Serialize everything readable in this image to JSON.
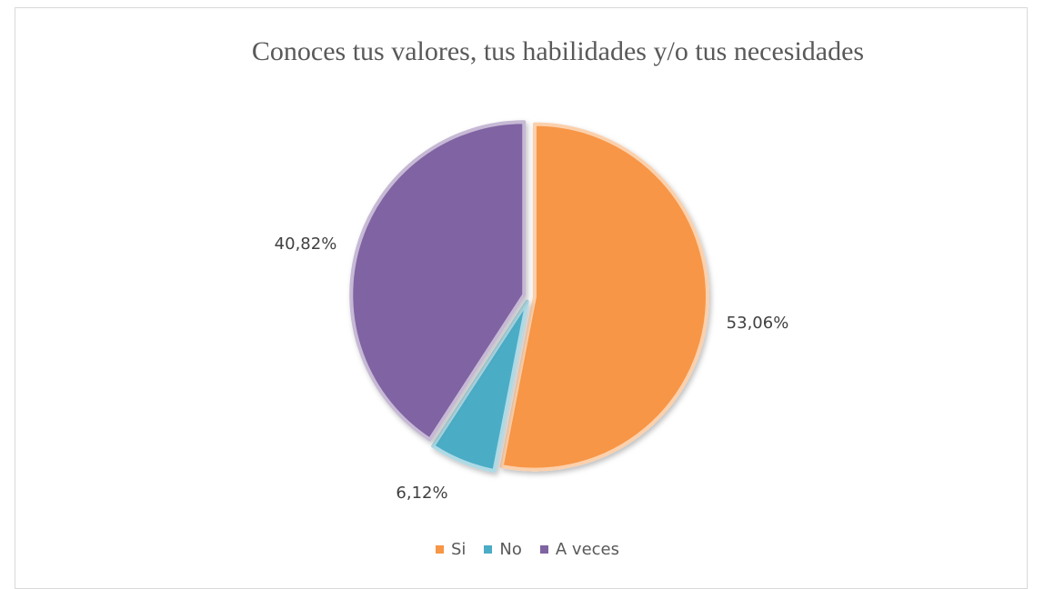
{
  "chart_data": {
    "type": "pie",
    "title": "Conoces tus valores, tus habilidades y/o tus necesidades",
    "categories": [
      "Si",
      "No",
      "A veces"
    ],
    "values": [
      53.06,
      6.12,
      40.82
    ],
    "value_labels": [
      "53,06%",
      "6,12%",
      "40,82%"
    ],
    "colors": [
      "#F79646",
      "#4BACC6",
      "#8064A2"
    ],
    "legend_position": "bottom",
    "exploded": true
  }
}
